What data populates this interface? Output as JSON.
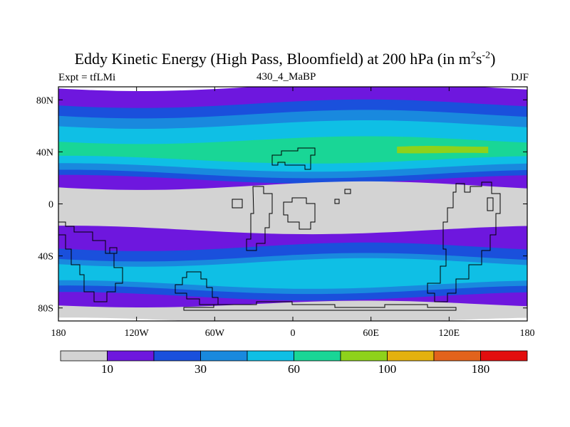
{
  "chart_data": {
    "type": "heatmap",
    "title": "Eddy Kinetic Energy (High Pass, Bloomfield) at 200 hPa (in m",
    "title_units": [
      "2",
      "s",
      "-2",
      ")"
    ],
    "subtitle_left": "Expt = tfLMi",
    "subtitle_center": "430_4_MaBP",
    "subtitle_right": "DJF",
    "x_range": [
      -180,
      180
    ],
    "y_range": [
      -90,
      90
    ],
    "x_ticks": [
      {
        "value": -180,
        "label": "180"
      },
      {
        "value": -120,
        "label": "120W"
      },
      {
        "value": -60,
        "label": "60W"
      },
      {
        "value": 0,
        "label": "0"
      },
      {
        "value": 60,
        "label": "60E"
      },
      {
        "value": 120,
        "label": "120E"
      },
      {
        "value": 180,
        "label": "180"
      }
    ],
    "y_ticks": [
      {
        "value": 80,
        "label": "80N"
      },
      {
        "value": 40,
        "label": "40N"
      },
      {
        "value": 0,
        "label": "0"
      },
      {
        "value": -40,
        "label": "40S"
      },
      {
        "value": -80,
        "label": "80S"
      }
    ],
    "colorbar": {
      "colors": [
        "#d3d3d3",
        "#6e17de",
        "#1a50dc",
        "#1989de",
        "#0fbfe5",
        "#19d696",
        "#8ed21b",
        "#e3b10e",
        "#e2631c",
        "#e20e0e"
      ],
      "labels": [
        {
          "boundary": 1,
          "text": "10"
        },
        {
          "boundary": 3,
          "text": "30"
        },
        {
          "boundary": 5,
          "text": "60"
        },
        {
          "boundary": 7,
          "text": "100"
        },
        {
          "boundary": 9,
          "text": "180"
        }
      ]
    },
    "bands": [
      {
        "level": 1,
        "lat_range": [
          -90,
          90
        ]
      },
      {
        "level": 2,
        "lat_range": [
          -71,
          -33
        ]
      },
      {
        "level": 3,
        "lat_range": [
          -66,
          -41
        ]
      },
      {
        "level": 4,
        "lat_range": [
          -62,
          -45
        ]
      },
      {
        "level": 2,
        "lat_range": [
          19,
          77
        ]
      },
      {
        "level": 3,
        "lat_range": [
          23,
          69
        ]
      },
      {
        "level": 4,
        "lat_range": [
          28,
          61
        ]
      },
      {
        "level": 5,
        "lat_range": [
          34,
          49
        ]
      },
      {
        "level": 6,
        "lat_range": [
          39,
          44
        ],
        "lon_range": [
          80,
          150
        ]
      }
    ],
    "low_regions": [
      {
        "level": 0,
        "lat_range": [
          -20,
          14
        ]
      },
      {
        "level": 0,
        "lat_range": [
          -90,
          -77
        ]
      }
    ]
  }
}
